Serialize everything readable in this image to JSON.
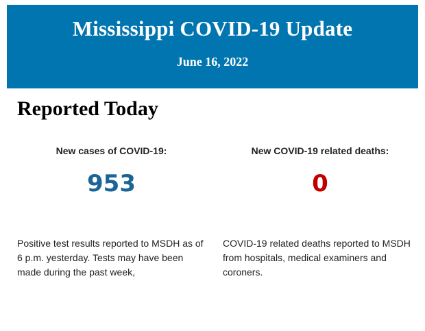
{
  "header": {
    "title": "Mississippi COVID-19 Update",
    "date": "June 16, 2022",
    "background_color": "#0075b0"
  },
  "section": {
    "title": "Reported Today"
  },
  "cases": {
    "label": "New cases of COVID-19:",
    "value": "953",
    "color": "#1a6496",
    "description": "Positive test results reported to MSDH as of 6 p.m. yesterday. Tests may have been made during the past week,"
  },
  "deaths": {
    "label": "New COVID-19 related deaths:",
    "value": "0",
    "color": "#c00000",
    "description": "COVID-19 related deaths reported to MSDH from hospitals, medical examiners and coroners."
  }
}
